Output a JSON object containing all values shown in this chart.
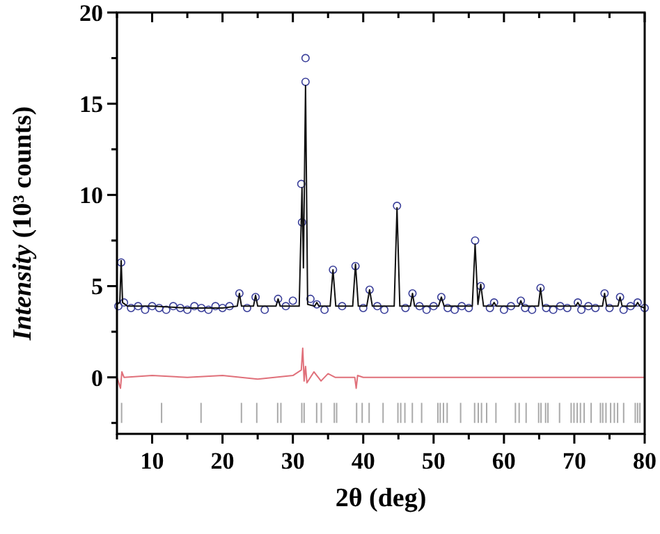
{
  "chart_data": {
    "type": "line",
    "xlabel": "2θ (deg)",
    "ylabel": "Intensity (10³ counts)",
    "xlim": [
      5,
      80
    ],
    "ylim": [
      -3.1,
      20
    ],
    "xticks": [
      {
        "value": 5,
        "label": null
      },
      10,
      {
        "value": 15,
        "label": null
      },
      20,
      {
        "value": 25,
        "label": null
      },
      30,
      {
        "value": 35,
        "label": null
      },
      40,
      {
        "value": 45,
        "label": null
      },
      50,
      {
        "value": 55,
        "label": null
      },
      60,
      {
        "value": 65,
        "label": null
      },
      70,
      {
        "value": 75,
        "label": null
      },
      80
    ],
    "yticks": [
      {
        "value": -2.5,
        "label": null
      },
      0,
      {
        "value": 2.5,
        "label": null
      },
      5,
      {
        "value": 7.5,
        "label": null
      },
      10,
      {
        "value": 12.5,
        "label": null
      },
      15,
      {
        "value": 17.5,
        "label": null
      },
      20
    ],
    "grid": false,
    "series": [
      {
        "type": "scatter",
        "marker": "circle",
        "color": "#3a3f9a",
        "x": [
          5.2,
          5.6,
          6,
          7,
          8,
          9,
          10,
          11,
          12,
          13,
          14,
          15,
          16,
          17,
          18,
          19,
          20,
          21,
          22.4,
          23.5,
          24.7,
          26,
          27.9,
          29,
          30,
          31.2,
          31.3,
          31.8,
          31.8,
          32.5,
          33.4,
          34.5,
          35.7,
          37,
          38.9,
          40,
          40.9,
          42,
          43,
          44.8,
          46,
          47,
          48,
          49,
          50,
          51.1,
          52,
          53,
          54,
          55,
          55.9,
          56.7,
          58,
          58.6,
          60,
          61,
          62.4,
          63,
          64,
          65.2,
          66,
          67,
          68,
          69,
          70.5,
          71,
          72,
          73,
          74.3,
          75,
          76.5,
          77,
          78,
          79,
          80
        ],
        "values": [
          3.9,
          6.3,
          4.1,
          3.8,
          3.9,
          3.7,
          3.9,
          3.8,
          3.7,
          3.9,
          3.8,
          3.7,
          3.9,
          3.8,
          3.7,
          3.9,
          3.8,
          3.9,
          4.6,
          3.8,
          4.4,
          3.7,
          4.3,
          3.9,
          4.2,
          10.6,
          8.5,
          17.5,
          16.2,
          4.3,
          4.0,
          3.7,
          5.9,
          3.9,
          6.1,
          3.8,
          4.8,
          3.9,
          3.7,
          9.4,
          3.8,
          4.6,
          3.9,
          3.7,
          3.9,
          4.4,
          3.8,
          3.7,
          3.9,
          3.8,
          7.5,
          5.0,
          3.8,
          4.1,
          3.7,
          3.9,
          4.2,
          3.8,
          3.7,
          4.9,
          3.8,
          3.7,
          3.9,
          3.8,
          4.1,
          3.7,
          3.9,
          3.8,
          4.6,
          3.8,
          4.4,
          3.7,
          3.9,
          4.1,
          3.8
        ]
      },
      {
        "line_style": "solid",
        "color": "#111111",
        "x": [
          5,
          5.4,
          5.6,
          5.8,
          6.5,
          10,
          15,
          20,
          22.1,
          22.4,
          22.7,
          24.4,
          24.7,
          25,
          27.6,
          27.9,
          28.2,
          30.9,
          31.3,
          31.5,
          31.8,
          32.1,
          33.1,
          33.4,
          33.7,
          35.3,
          35.7,
          36.1,
          38.5,
          38.9,
          39.3,
          40.5,
          40.9,
          41.3,
          44.4,
          44.8,
          45.2,
          46.7,
          47,
          47.3,
          50.7,
          51.1,
          51.5,
          55.5,
          55.9,
          56.3,
          56.7,
          57.1,
          58.3,
          58.6,
          58.9,
          62.1,
          62.4,
          62.7,
          64.9,
          65.2,
          65.5,
          70.2,
          70.5,
          70.8,
          74,
          74.3,
          74.6,
          76.2,
          76.5,
          76.8,
          78.7,
          79,
          79.3,
          80
        ],
        "values": [
          4.0,
          4.1,
          6.4,
          4.1,
          3.9,
          3.9,
          3.8,
          3.8,
          3.9,
          4.6,
          3.9,
          3.9,
          4.5,
          3.9,
          3.9,
          4.3,
          3.9,
          3.9,
          10.4,
          6.0,
          16.0,
          4.0,
          3.9,
          4.1,
          3.9,
          3.9,
          5.9,
          3.9,
          3.9,
          6.2,
          3.9,
          3.9,
          4.8,
          3.9,
          3.9,
          9.3,
          3.9,
          3.9,
          4.6,
          3.9,
          3.9,
          4.4,
          3.9,
          3.9,
          7.3,
          4.0,
          5.1,
          3.9,
          3.9,
          4.1,
          3.9,
          3.9,
          4.2,
          3.9,
          3.9,
          4.9,
          3.9,
          3.9,
          4.1,
          3.9,
          3.9,
          4.6,
          3.9,
          3.9,
          4.4,
          3.9,
          3.9,
          4.1,
          3.9,
          3.8
        ]
      },
      {
        "type": "line",
        "line_style": "solid",
        "color": "#e0707a",
        "x": [
          5,
          5.5,
          5.7,
          6,
          10,
          15,
          20,
          25,
          30,
          31.2,
          31.4,
          31.6,
          31.8,
          32,
          33,
          34,
          35,
          36,
          38.8,
          39,
          39.2,
          40,
          45,
          50,
          55,
          60,
          65,
          70,
          75,
          80
        ],
        "values": [
          0,
          -0.6,
          0.3,
          0,
          0.1,
          0,
          0.1,
          -0.1,
          0.1,
          0.4,
          1.6,
          -0.2,
          0.6,
          -0.3,
          0.3,
          -0.2,
          0.2,
          0,
          0,
          -0.6,
          0.1,
          0,
          0,
          0,
          0,
          0,
          0,
          0,
          0,
          0
        ]
      },
      {
        "type": "bar",
        "color": "#aaaaaa",
        "x": [
          5.66,
          11.34,
          16.95,
          22.69,
          24.87,
          27.84,
          28.3,
          31.27,
          31.6,
          33.38,
          34.04,
          35.89,
          36.22,
          39.06,
          39.85,
          40.84,
          42.82,
          44.93,
          45.33,
          45.92,
          46.98,
          48.3,
          50.61,
          50.94,
          51.4,
          51.93,
          53.84,
          55.83,
          56.35,
          56.81,
          57.54,
          58.86,
          61.63,
          62.16,
          63.15,
          64.93,
          65.26,
          65.92,
          66.25,
          67.9,
          69.55,
          69.95,
          70.41,
          70.87,
          71.4,
          72.39,
          73.71,
          74.04,
          74.5,
          75.16,
          75.69,
          76.15,
          77.01,
          78.66,
          78.99,
          79.32
        ],
        "base": [
          -2.5,
          -2.5,
          -2.5,
          -2.5,
          -2.5,
          -2.5,
          -2.5,
          -2.5,
          -2.5,
          -2.5,
          -2.5,
          -2.5,
          -2.5,
          -2.5,
          -2.5,
          -2.5,
          -2.5,
          -2.5,
          -2.5,
          -2.5,
          -2.5,
          -2.5,
          -2.5,
          -2.5,
          -2.5,
          -2.5,
          -2.5,
          -2.5,
          -2.5,
          -2.5,
          -2.5,
          -2.5,
          -2.5,
          -2.5,
          -2.5,
          -2.5,
          -2.5,
          -2.5,
          -2.5,
          -2.5,
          -2.5,
          -2.5,
          -2.5,
          -2.5,
          -2.5,
          -2.5,
          -2.5,
          -2.5,
          -2.5,
          -2.5,
          -2.5,
          -2.5,
          -2.5,
          -2.5,
          -2.5,
          -2.5
        ],
        "values": [
          1.1,
          1.1,
          1.1,
          1.1,
          1.1,
          1.1,
          1.1,
          1.1,
          1.1,
          1.1,
          1.1,
          1.1,
          1.1,
          1.1,
          1.1,
          1.1,
          1.1,
          1.1,
          1.1,
          1.1,
          1.1,
          1.1,
          1.1,
          1.1,
          1.1,
          1.1,
          1.1,
          1.1,
          1.1,
          1.1,
          1.1,
          1.1,
          1.1,
          1.1,
          1.1,
          1.1,
          1.1,
          1.1,
          1.1,
          1.1,
          1.1,
          1.1,
          1.1,
          1.1,
          1.1,
          1.1,
          1.1,
          1.1,
          1.1,
          1.1,
          1.1,
          1.1,
          1.1,
          1.1,
          1.1,
          1.1
        ]
      }
    ]
  }
}
